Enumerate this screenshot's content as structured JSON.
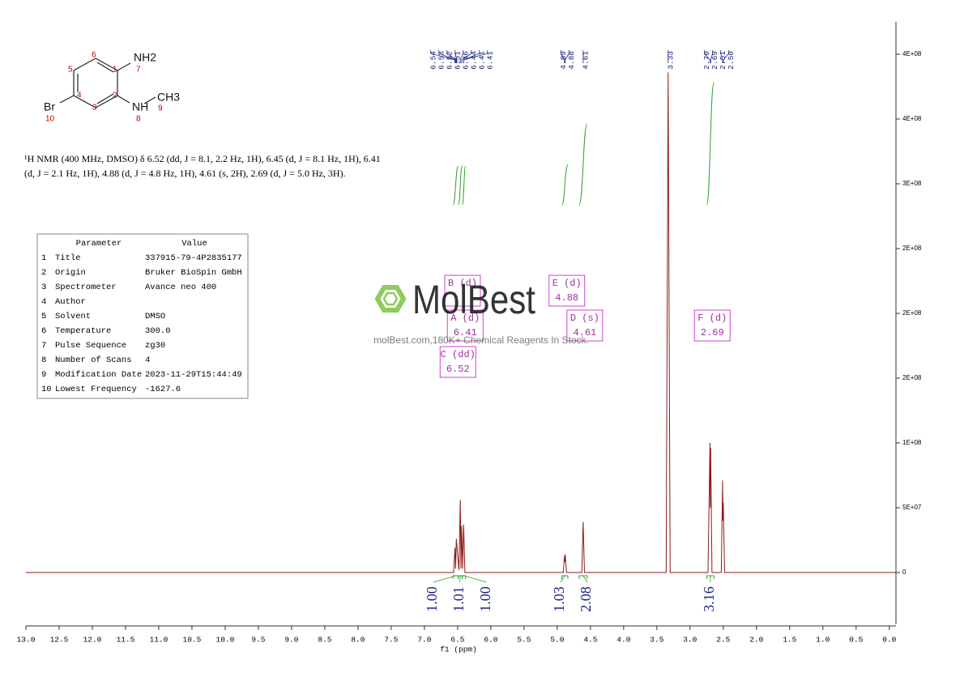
{
  "structure": {
    "nh2": "NH2",
    "nh": "NH",
    "ch3": "CH3",
    "br": "Br",
    "numbers": [
      1,
      2,
      3,
      4,
      5,
      6,
      7,
      8,
      9,
      10
    ]
  },
  "description": [
    "¹H NMR (400 MHz, DMSO) δ 6.52 (dd, J = 8.1, 2.2 Hz, 1H), 6.45 (d, J = 8.1 Hz, 1H), 6.41",
    "(d, J = 2.1 Hz, 1H), 4.88 (d, J = 4.8 Hz, 1H), 4.61 (s, 2H), 2.69 (d, J = 5.0 Hz, 3H)."
  ],
  "table": {
    "header": [
      "Parameter",
      "Value"
    ],
    "rows": [
      [
        "1",
        "Title",
        "337915-79-4P2835177"
      ],
      [
        "2",
        "Origin",
        "Bruker BioSpin GmbH"
      ],
      [
        "3",
        "Spectrometer",
        "Avance neo 400"
      ],
      [
        "4",
        "Author"
      ],
      [
        "5",
        "Solvent",
        "DMSO"
      ],
      [
        "6",
        "Temperature",
        "300.0"
      ],
      [
        "7",
        "Pulse Sequence",
        "zg30"
      ],
      [
        "8",
        "Number of Scans",
        "4"
      ],
      [
        "9",
        "Modification Date",
        "2023-11-29T15:44:49"
      ],
      [
        "10",
        "Lowest Frequency",
        "-1627.6"
      ]
    ]
  },
  "watermark": {
    "logo": "MolBest",
    "tagline": "molBest.com,180K+ Chemical Reagents In Stock."
  },
  "chart_data": {
    "type": "line",
    "x_label": "f1 (ppm)",
    "xlim": [
      13.0,
      -0.1
    ],
    "xticks": [
      {
        "value": 13,
        "label": "13.0"
      },
      {
        "value": 12.5,
        "label": "12.5"
      },
      {
        "value": 12,
        "label": "12.0"
      },
      {
        "value": 11.5,
        "label": "11.5"
      },
      {
        "value": 11,
        "label": "11.0"
      },
      {
        "value": 10.5,
        "label": "10.5"
      },
      {
        "value": 10,
        "label": "10.0"
      },
      {
        "value": 9.5,
        "label": "9.5"
      },
      {
        "value": 9,
        "label": "9.0"
      },
      {
        "value": 8.5,
        "label": "8.5"
      },
      {
        "value": 8,
        "label": "8.0"
      },
      {
        "value": 7.5,
        "label": "7.5"
      },
      {
        "value": 7,
        "label": "7.0"
      },
      {
        "value": 6.5,
        "label": "6.5"
      },
      {
        "value": 6,
        "label": "6.0"
      },
      {
        "value": 5.5,
        "label": "5.5"
      },
      {
        "value": 5,
        "label": "5.0"
      },
      {
        "value": 4.5,
        "label": "4.5"
      },
      {
        "value": 4,
        "label": "4.0"
      },
      {
        "value": 3.5,
        "label": "3.5"
      },
      {
        "value": 3,
        "label": "3.0"
      },
      {
        "value": 2.5,
        "label": "2.5"
      },
      {
        "value": 2,
        "label": "2.0"
      },
      {
        "value": 1.5,
        "label": "1.5"
      },
      {
        "value": 1,
        "label": "1.0"
      },
      {
        "value": 0.5,
        "label": "0.5"
      },
      {
        "value": 0,
        "label": "0.0"
      }
    ],
    "ylim": [
      -40000000,
      425000000
    ],
    "yticks": [
      0,
      {
        "value": 50000000,
        "label": "5E+07"
      },
      {
        "value": 100000000,
        "label": "1E+08"
      },
      {
        "value": 150000000,
        "label": "2E+08"
      },
      {
        "value": 200000000,
        "label": "2E+08"
      },
      {
        "value": 250000000,
        "label": "2E+08"
      },
      {
        "value": 300000000,
        "label": "3E+08"
      },
      {
        "value": 350000000,
        "label": "4E+08"
      },
      {
        "value": 400000000,
        "label": "4E+08"
      }
    ],
    "x": [
      13.0,
      6.56,
      6.54,
      6.53,
      6.52,
      6.48,
      6.46,
      6.45,
      6.44,
      6.425,
      6.41,
      6.39,
      4.91,
      4.89,
      4.885,
      4.88,
      4.86,
      4.63,
      4.61,
      4.59,
      3.36,
      3.33,
      3.3,
      2.73,
      2.7,
      2.695,
      2.69,
      2.67,
      2.53,
      2.51,
      2.505,
      2.5,
      2.48,
      -0.1
    ],
    "series": [
      {
        "color": "#8b1a1a",
        "values": [
          0,
          0,
          19000000,
          3000000,
          26000000,
          2000000,
          56000000,
          3000000,
          36000000,
          3000000,
          37000000,
          0,
          0,
          13000000,
          8000000,
          14000000,
          0,
          0,
          39000000,
          0,
          0,
          386000000,
          0,
          0,
          100000000,
          50000000,
          96000000,
          0,
          0,
          71000000,
          40000000,
          54000000,
          0,
          0
        ]
      }
    ],
    "peak_labels": [
      6.54,
      6.53,
      6.52,
      6.51,
      6.46,
      6.44,
      6.41,
      6.41,
      4.89,
      4.88,
      4.61,
      3.33,
      {
        "value": 2.7,
        "label": "2.70"
      },
      2.69,
      2.51,
      {
        "value": 2.5,
        "label": "2.50"
      }
    ],
    "integrals": [
      {
        "range": [
          6.57,
          6.49
        ],
        "value": 1,
        "label": "1.00"
      },
      {
        "range": [
          6.49,
          6.43
        ],
        "value": 1.01,
        "label": "1.01"
      },
      {
        "range": [
          6.43,
          6.38
        ],
        "value": 1,
        "label": "1.00"
      },
      {
        "range": [
          4.93,
          4.84
        ],
        "value": 1.03,
        "label": "1.03"
      },
      {
        "range": [
          4.67,
          4.55
        ],
        "value": 2.08,
        "label": "2.08"
      },
      {
        "range": [
          2.75,
          2.64
        ],
        "value": 3.16,
        "label": "3.16"
      }
    ],
    "multiplets": [
      {
        "name": "A (d)",
        "value": 6.41
      },
      {
        "name": "B (d)"
      },
      {
        "name": "C (dd)",
        "value": 6.52
      },
      {
        "name": "D (s)",
        "value": 4.61
      },
      {
        "name": "E (d)",
        "value": 4.88
      },
      {
        "name": "F (d)",
        "value": 2.69
      }
    ]
  }
}
